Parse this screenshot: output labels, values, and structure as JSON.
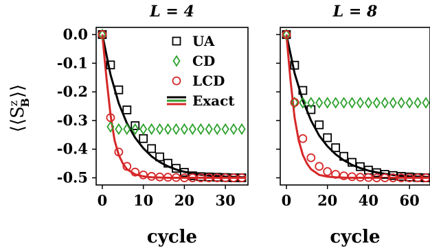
{
  "ylabel": "⟨⟨S",
  "ylabel_sup": "z",
  "ylabel_sub": "B",
  "ylabel_close": "⟩⟩",
  "xlabel": "cycle",
  "legend": {
    "placement": "top-right",
    "entries": [
      {
        "label": "UA",
        "marker": "square",
        "color": "#000000"
      },
      {
        "label": "CD",
        "marker": "diamond",
        "color": "#2ca02c"
      },
      {
        "label": "LCD",
        "marker": "circle",
        "color": "#d62728"
      },
      {
        "label": "Exact",
        "marker": "lines",
        "colors": [
          "#000000",
          "#2ca02c",
          "#d62728"
        ]
      }
    ]
  },
  "colors": {
    "UA": "#000000",
    "CD": "#2ca02c",
    "LCD": "#d62728"
  },
  "chart_data": [
    {
      "type": "line",
      "title": "L = 4",
      "xlabel": "cycle",
      "ylabel": "⟨⟨S^z_B⟩⟩",
      "xlim": [
        -1.5,
        35.5
      ],
      "ylim": [
        -0.525,
        0.025
      ],
      "xticks": [
        0,
        10,
        20,
        30
      ],
      "yticks": [
        0.0,
        -0.1,
        -0.2,
        -0.3,
        -0.4,
        -0.5
      ],
      "ytick_labels": [
        "0.0",
        "-0.1",
        "-0.2",
        "-0.3",
        "-0.4",
        "-0.5"
      ],
      "grid": false,
      "series": [
        {
          "name": "UA",
          "marker": "square",
          "color": "#000000",
          "x": [
            0,
            2,
            4,
            6,
            8,
            10,
            12,
            14,
            16,
            18,
            20,
            22,
            24,
            26,
            28,
            30,
            32,
            34
          ],
          "y": [
            0.0,
            -0.106,
            -0.193,
            -0.263,
            -0.318,
            -0.363,
            -0.398,
            -0.427,
            -0.449,
            -0.467,
            -0.481,
            -0.493,
            -0.496,
            -0.497,
            -0.498,
            -0.499,
            -0.5,
            -0.5
          ]
        },
        {
          "name": "CD",
          "marker": "diamond",
          "color": "#2ca02c",
          "x": [
            0,
            2,
            4,
            6,
            8,
            10,
            12,
            14,
            16,
            18,
            20,
            22,
            24,
            26,
            28,
            30,
            32,
            34
          ],
          "y": [
            0.0,
            -0.322,
            -0.33,
            -0.33,
            -0.33,
            -0.33,
            -0.33,
            -0.33,
            -0.33,
            -0.33,
            -0.33,
            -0.33,
            -0.33,
            -0.33,
            -0.33,
            -0.33,
            -0.33,
            -0.33
          ]
        },
        {
          "name": "LCD",
          "marker": "circle",
          "color": "#d62728",
          "x": [
            0,
            2,
            4,
            6,
            8,
            10,
            12,
            14,
            16,
            18,
            20,
            22,
            24,
            26,
            28,
            30,
            32,
            34
          ],
          "y": [
            0.0,
            -0.29,
            -0.41,
            -0.46,
            -0.48,
            -0.49,
            -0.495,
            -0.497,
            -0.498,
            -0.499,
            -0.5,
            -0.5,
            -0.5,
            -0.5,
            -0.5,
            -0.5,
            -0.5,
            -0.5
          ]
        },
        {
          "name": "Exact UA",
          "line": true,
          "color": "#000000",
          "x": [
            0,
            2,
            4,
            6,
            8,
            10,
            12,
            14,
            16,
            18,
            20,
            22,
            24,
            26,
            28,
            30,
            32,
            34,
            35
          ],
          "y": [
            0.0,
            -0.14,
            -0.24,
            -0.31,
            -0.36,
            -0.397,
            -0.425,
            -0.445,
            -0.46,
            -0.471,
            -0.479,
            -0.485,
            -0.489,
            -0.492,
            -0.494,
            -0.496,
            -0.497,
            -0.498,
            -0.498
          ]
        },
        {
          "name": "Exact LCD",
          "line": true,
          "color": "#d62728",
          "x": [
            0,
            1,
            2,
            3,
            4,
            5,
            6,
            8,
            10,
            12,
            14,
            16,
            20,
            25,
            30,
            35
          ],
          "y": [
            0.0,
            -0.15,
            -0.28,
            -0.37,
            -0.42,
            -0.45,
            -0.47,
            -0.488,
            -0.495,
            -0.498,
            -0.499,
            -0.5,
            -0.5,
            -0.5,
            -0.5,
            -0.5
          ]
        }
      ]
    },
    {
      "type": "line",
      "title": "L = 8",
      "xlabel": "cycle",
      "xlim": [
        -3,
        70
      ],
      "ylim": [
        -0.525,
        0.025
      ],
      "xticks": [
        0,
        20,
        40,
        60
      ],
      "yticks": [
        0.0,
        -0.1,
        -0.2,
        -0.3,
        -0.4,
        -0.5
      ],
      "grid": false,
      "series": [
        {
          "name": "UA",
          "marker": "square",
          "color": "#000000",
          "x": [
            0,
            4,
            8,
            12,
            16,
            20,
            24,
            28,
            32,
            36,
            40,
            44,
            48,
            52,
            56,
            60,
            64,
            68
          ],
          "y": [
            0.0,
            -0.107,
            -0.195,
            -0.262,
            -0.315,
            -0.36,
            -0.395,
            -0.425,
            -0.446,
            -0.461,
            -0.473,
            -0.482,
            -0.488,
            -0.492,
            -0.495,
            -0.497,
            -0.499,
            -0.5
          ]
        },
        {
          "name": "CD",
          "marker": "diamond",
          "color": "#2ca02c",
          "x": [
            0,
            4,
            8,
            12,
            16,
            20,
            24,
            28,
            32,
            36,
            40,
            44,
            48,
            52,
            56,
            60,
            64,
            68
          ],
          "y": [
            0.0,
            -0.237,
            -0.238,
            -0.238,
            -0.238,
            -0.238,
            -0.238,
            -0.238,
            -0.238,
            -0.238,
            -0.238,
            -0.238,
            -0.238,
            -0.238,
            -0.238,
            -0.238,
            -0.238,
            -0.238
          ]
        },
        {
          "name": "LCD",
          "marker": "circle",
          "color": "#d62728",
          "x": [
            0,
            4,
            8,
            12,
            16,
            20,
            24,
            28,
            32,
            36,
            40,
            44,
            48,
            52,
            56,
            60,
            64,
            68
          ],
          "y": [
            0.0,
            -0.237,
            -0.363,
            -0.43,
            -0.46,
            -0.478,
            -0.488,
            -0.493,
            -0.496,
            -0.498,
            -0.499,
            -0.5,
            -0.5,
            -0.5,
            -0.5,
            -0.5,
            -0.5,
            -0.5
          ]
        },
        {
          "name": "Exact UA",
          "line": true,
          "color": "#000000",
          "x": [
            0,
            4,
            8,
            12,
            16,
            20,
            24,
            28,
            32,
            36,
            40,
            44,
            48,
            52,
            56,
            60,
            64,
            68,
            70
          ],
          "y": [
            0.0,
            -0.135,
            -0.23,
            -0.3,
            -0.353,
            -0.39,
            -0.418,
            -0.439,
            -0.455,
            -0.466,
            -0.475,
            -0.481,
            -0.486,
            -0.49,
            -0.493,
            -0.495,
            -0.496,
            -0.497,
            -0.498
          ]
        },
        {
          "name": "Exact LCD",
          "line": true,
          "color": "#d62728",
          "x": [
            0,
            2,
            4,
            6,
            8,
            10,
            12,
            16,
            20,
            24,
            30,
            40,
            50,
            60,
            70
          ],
          "y": [
            0.0,
            -0.16,
            -0.29,
            -0.37,
            -0.42,
            -0.45,
            -0.47,
            -0.49,
            -0.496,
            -0.498,
            -0.5,
            -0.5,
            -0.5,
            -0.5,
            -0.5
          ]
        }
      ]
    }
  ]
}
